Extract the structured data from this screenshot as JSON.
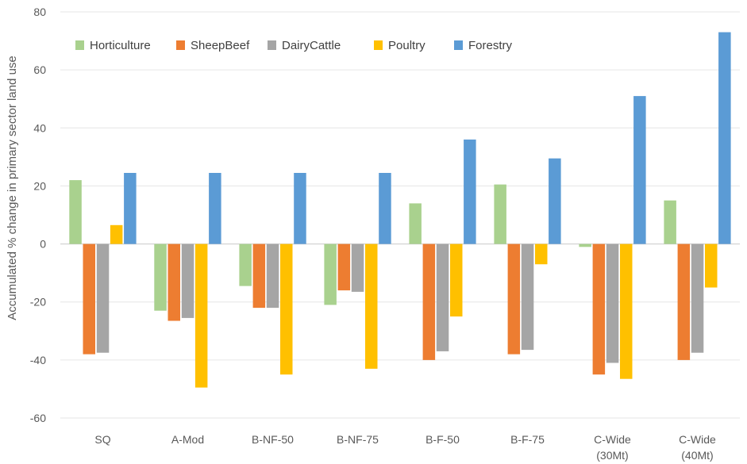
{
  "chart_data": {
    "type": "bar",
    "title": "",
    "xlabel": "",
    "ylabel": "Accumulated % change in primary sector land use",
    "ylim": [
      -60,
      80
    ],
    "yticks": [
      80,
      60,
      40,
      20,
      0,
      -20,
      -40,
      -60
    ],
    "grid": true,
    "legend_position": "top-left",
    "categories": [
      [
        "SQ"
      ],
      [
        "A-Mod"
      ],
      [
        "B-NF-50"
      ],
      [
        "B-NF-75"
      ],
      [
        "B-F-50"
      ],
      [
        "B-F-75"
      ],
      [
        "C-Wide",
        "(30Mt)"
      ],
      [
        "C-Wide",
        "(40Mt)"
      ]
    ],
    "series": [
      {
        "name": "Horticulture",
        "color": "#a9d18e",
        "values": [
          22,
          -23,
          -14.5,
          -21,
          14,
          20.5,
          -1,
          15
        ]
      },
      {
        "name": "SheepBeef",
        "color": "#ed7d31",
        "values": [
          -38,
          -26.5,
          -22,
          -16,
          -40,
          -38,
          -45,
          -40
        ]
      },
      {
        "name": "DairyCattle",
        "color": "#a5a5a5",
        "values": [
          -37.5,
          -25.5,
          -22,
          -16.5,
          -37,
          -36.5,
          -41,
          -37.5
        ]
      },
      {
        "name": "Poultry",
        "color": "#ffc000",
        "values": [
          6.5,
          -49.5,
          -45,
          -43,
          -25,
          -7,
          -46.5,
          -15
        ]
      },
      {
        "name": "Forestry",
        "color": "#5b9bd5",
        "values": [
          24.5,
          24.5,
          24.5,
          24.5,
          36,
          29.5,
          51,
          73
        ]
      }
    ]
  }
}
